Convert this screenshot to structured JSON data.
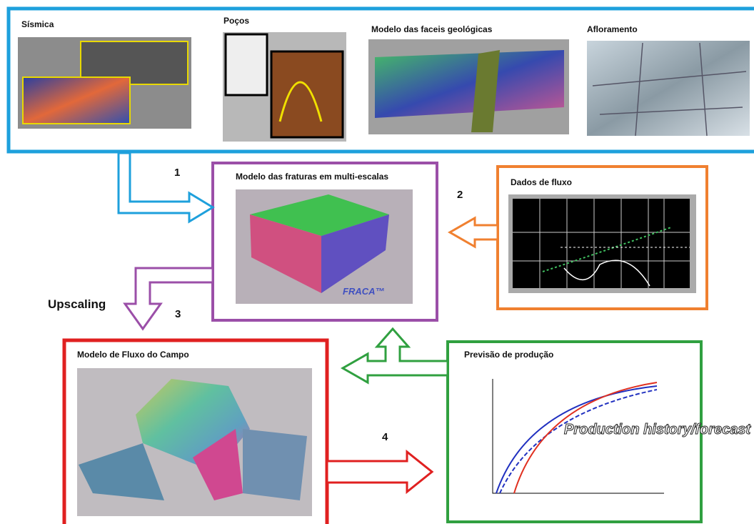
{
  "inputs": {
    "panels": [
      {
        "title": "Sísmica"
      },
      {
        "title": "Poços"
      },
      {
        "title": "Modelo das faceis geológicas"
      },
      {
        "title": "Afloramento"
      }
    ]
  },
  "fracture_model": {
    "title": "Modelo das fraturas em multi-escalas",
    "logo": "FRACA™"
  },
  "flow_data": {
    "title": "Dados de fluxo"
  },
  "field_model": {
    "title": "Modelo de Fluxo do Campo"
  },
  "forecast": {
    "title": "Previsão de produção",
    "caption": "Production history/forecast"
  },
  "steps": {
    "one": "1",
    "two": "2",
    "three": "3",
    "four": "4",
    "upscaling": "Upscaling"
  }
}
